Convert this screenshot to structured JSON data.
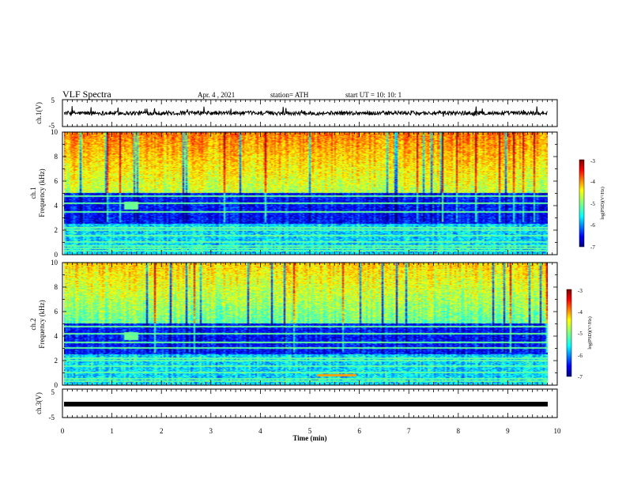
{
  "header": {
    "title": "VLF Spectra",
    "date": "Apr. 4 , 2021",
    "station": "station= ATH",
    "start_ut": "start UT =   10: 10: 1"
  },
  "chart_data": [
    {
      "type": "line",
      "panel": "ch1-voltage",
      "ylabel": "ch.1(V)",
      "ylim": [
        -5,
        5
      ],
      "ytick_labels": [
        "5",
        "-5"
      ],
      "baseline_value": 0,
      "noise_amplitude": 0.7,
      "color": "#000000"
    },
    {
      "type": "heatmap",
      "panel": "ch1-spectrogram",
      "ylabel_channel": "ch.1",
      "ylabel": "Frequency  (kHz)",
      "ylim": [
        0,
        10
      ],
      "ytick_labels": [
        "0",
        "2",
        "4",
        "6",
        "8",
        "10"
      ],
      "xlim": [
        0,
        10
      ],
      "colorbar": {
        "label": "log(PSD)(V²/Hz)",
        "range": [
          -7,
          -3
        ],
        "tick_labels": [
          "-3",
          "-4",
          "-5",
          "-6",
          "-7"
        ],
        "colormap": "jet"
      },
      "features": {
        "dark_band_khz": [
          2.5,
          5.0
        ],
        "emission_x_min": [
          1.2,
          1.5
        ],
        "emission_y_khz": [
          3.7,
          4.3
        ],
        "line_freqs_khz": [
          0.3,
          0.5,
          0.7,
          1.0,
          1.5,
          2.0,
          2.2,
          3.5,
          4.2,
          4.8
        ]
      }
    },
    {
      "type": "heatmap",
      "panel": "ch2-spectrogram",
      "ylabel_channel": "ch.2",
      "ylabel": "Frequency  (kHz)",
      "ylim": [
        0,
        10
      ],
      "ytick_labels": [
        "0",
        "2",
        "4",
        "6",
        "8",
        "10"
      ],
      "xlim": [
        0,
        10
      ],
      "colorbar": {
        "label": "log(PSD)(V²/Hz)",
        "range": [
          -7,
          -3
        ],
        "tick_labels": [
          "-3",
          "-4",
          "-5",
          "-6",
          "-7"
        ],
        "colormap": "jet"
      },
      "features": {
        "dark_band_khz": [
          2.5,
          5.0
        ],
        "emission_x_min": [
          1.2,
          1.5
        ],
        "emission_y_khz": [
          3.7,
          4.3
        ],
        "line_freqs_khz": [
          0.3,
          0.5,
          1.0,
          1.5,
          2.0,
          2.2,
          3.0,
          3.5,
          4.2,
          4.8
        ],
        "orange_line_x_min": [
          5.1,
          5.9
        ],
        "orange_line_khz": 0.8
      }
    },
    {
      "type": "line",
      "panel": "ch3-voltage",
      "ylabel": "ch.3(V)",
      "ylim": [
        -5,
        5
      ],
      "ytick_labels": [
        "5",
        "-5"
      ],
      "baseline_value": 0,
      "xlim": [
        0,
        10
      ],
      "color": "#000000"
    }
  ],
  "xaxis": {
    "label": "Time  (min)",
    "tick_labels": [
      "0",
      "1",
      "2",
      "3",
      "4",
      "5",
      "6",
      "7",
      "8",
      "9",
      "10"
    ]
  }
}
